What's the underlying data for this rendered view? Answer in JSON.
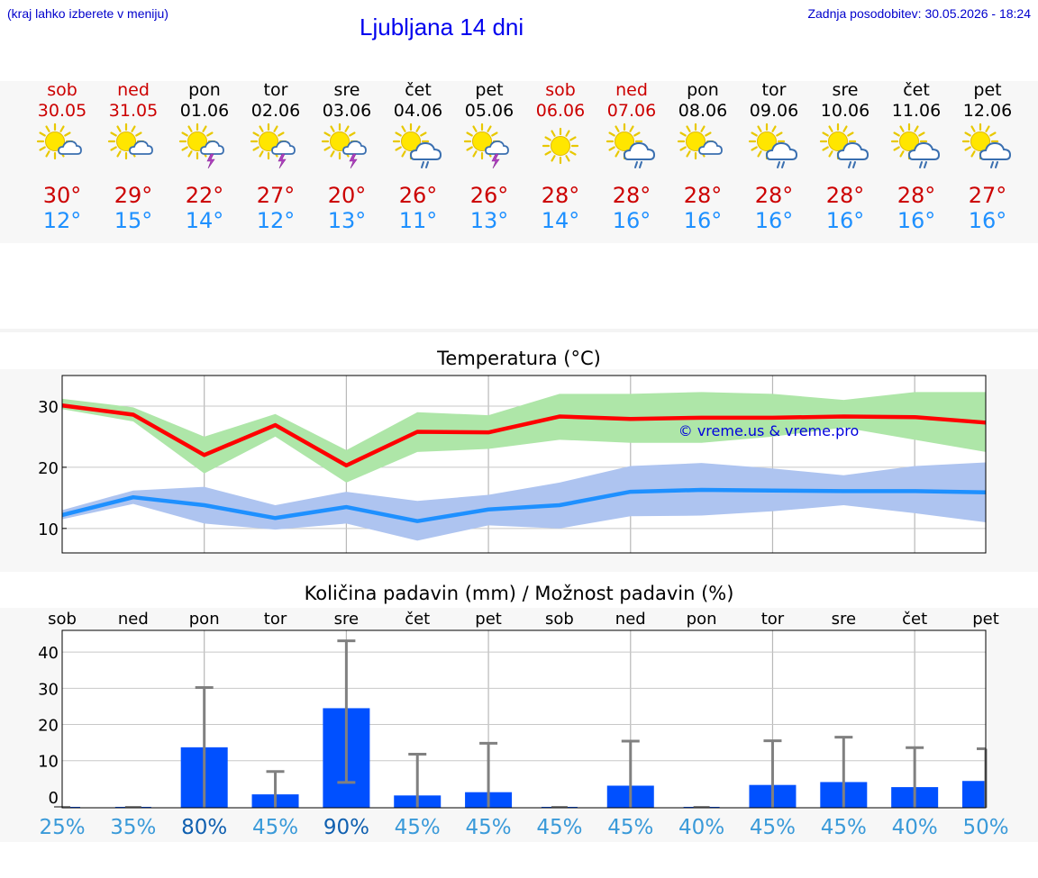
{
  "header": {
    "hint": "(kraj lahko izberete v meniju)",
    "title": "Ljubljana 14 dni",
    "updated": "Zadnja posodobitev: 30.05.2026 - 18:24"
  },
  "colors": {
    "weekend": "#cc0000",
    "weekday": "#000000",
    "tmax": "#ff0000",
    "tmin": "#1e90ff",
    "tmax_band": "#aee6a8",
    "tmin_band": "#aec4f0",
    "bar": "#0050ff",
    "errorbar": "#808080"
  },
  "days": [
    {
      "name": "sob",
      "date": "30.05",
      "weekend": true,
      "icon": "sun-cloud",
      "tmax": "30°",
      "tmin": "12°"
    },
    {
      "name": "ned",
      "date": "31.05",
      "weekend": true,
      "icon": "sun-cloud",
      "tmax": "29°",
      "tmin": "15°"
    },
    {
      "name": "pon",
      "date": "01.06",
      "weekend": false,
      "icon": "sun-cloud-storm",
      "tmax": "22°",
      "tmin": "14°"
    },
    {
      "name": "tor",
      "date": "02.06",
      "weekend": false,
      "icon": "sun-cloud-storm",
      "tmax": "27°",
      "tmin": "12°"
    },
    {
      "name": "sre",
      "date": "03.06",
      "weekend": false,
      "icon": "sun-cloud-storm",
      "tmax": "20°",
      "tmin": "13°"
    },
    {
      "name": "čet",
      "date": "04.06",
      "weekend": false,
      "icon": "sun-cloud-rain",
      "tmax": "26°",
      "tmin": "11°"
    },
    {
      "name": "pet",
      "date": "05.06",
      "weekend": false,
      "icon": "sun-cloud-storm",
      "tmax": "26°",
      "tmin": "13°"
    },
    {
      "name": "sob",
      "date": "06.06",
      "weekend": true,
      "icon": "sun",
      "tmax": "28°",
      "tmin": "14°"
    },
    {
      "name": "ned",
      "date": "07.06",
      "weekend": true,
      "icon": "sun-cloud-rain",
      "tmax": "28°",
      "tmin": "16°"
    },
    {
      "name": "pon",
      "date": "08.06",
      "weekend": false,
      "icon": "sun-cloud",
      "tmax": "28°",
      "tmin": "16°"
    },
    {
      "name": "tor",
      "date": "09.06",
      "weekend": false,
      "icon": "sun-cloud-rain",
      "tmax": "28°",
      "tmin": "16°"
    },
    {
      "name": "sre",
      "date": "10.06",
      "weekend": false,
      "icon": "sun-cloud-rain",
      "tmax": "28°",
      "tmin": "16°"
    },
    {
      "name": "čet",
      "date": "11.06",
      "weekend": false,
      "icon": "sun-cloud-rain",
      "tmax": "28°",
      "tmin": "16°"
    },
    {
      "name": "pet",
      "date": "12.06",
      "weekend": false,
      "icon": "sun-cloud-rain",
      "tmax": "27°",
      "tmin": "16°"
    }
  ],
  "chart_data": [
    {
      "type": "line",
      "title": "Temperatura (°C)",
      "ylim": [
        6,
        35
      ],
      "yticks": [
        10,
        20,
        30
      ],
      "grid": true,
      "watermark": "© vreme.us & vreme.pro",
      "x_index": [
        0,
        1,
        2,
        3,
        4,
        5,
        6,
        7,
        8,
        9,
        10,
        11,
        12,
        13
      ],
      "series": [
        {
          "role": "tmax",
          "values": [
            30.1,
            28.6,
            22.0,
            26.9,
            20.3,
            25.8,
            25.7,
            28.3,
            27.9,
            28.1,
            28.1,
            28.3,
            28.2,
            27.3
          ]
        },
        {
          "role": "tmin",
          "values": [
            12.2,
            15.1,
            13.8,
            11.7,
            13.5,
            11.2,
            13.1,
            13.8,
            16.0,
            16.3,
            16.2,
            16.1,
            16.1,
            15.9
          ]
        }
      ],
      "bands": [
        {
          "role": "tmax_band",
          "low": [
            29.5,
            27.5,
            19.0,
            25.0,
            17.5,
            22.5,
            23.0,
            24.5,
            24.0,
            24.0,
            25.0,
            26.5,
            24.5,
            22.5
          ],
          "high": [
            31.2,
            29.8,
            25.0,
            28.7,
            22.8,
            29.0,
            28.5,
            32.0,
            32.0,
            32.3,
            32.0,
            31.0,
            32.3,
            32.3
          ]
        },
        {
          "role": "tmin_band",
          "low": [
            11.5,
            14.0,
            10.8,
            9.8,
            10.8,
            8.0,
            10.5,
            10.0,
            12.0,
            12.1,
            12.8,
            13.8,
            12.5,
            11.0
          ],
          "high": [
            13.0,
            16.2,
            16.8,
            13.8,
            16.0,
            14.5,
            15.5,
            17.5,
            20.2,
            20.7,
            19.8,
            18.7,
            20.2,
            20.8
          ]
        }
      ]
    },
    {
      "type": "bar",
      "title": "Količina padavin (mm) / Možnost padavin (%)",
      "categories": [
        "sob",
        "ned",
        "pon",
        "tor",
        "sre",
        "čet",
        "pet",
        "sob",
        "ned",
        "pon",
        "tor",
        "sre",
        "čet",
        "pet"
      ],
      "values": [
        0,
        0,
        13.7,
        0.7,
        24.5,
        0.4,
        1.3,
        0,
        3.1,
        0,
        3.3,
        4.1,
        2.7,
        4.4
      ],
      "err_low": [
        0,
        0,
        0,
        0,
        4.0,
        0,
        0,
        0,
        0,
        0,
        0,
        0,
        0,
        0
      ],
      "err_high": [
        0,
        0.1,
        30.2,
        7.0,
        43.1,
        11.8,
        14.8,
        0.1,
        15.4,
        0.1,
        15.5,
        16.5,
        13.6,
        13.3
      ],
      "chances": [
        "25%",
        "35%",
        "80%",
        "45%",
        "90%",
        "45%",
        "45%",
        "45%",
        "45%",
        "40%",
        "45%",
        "45%",
        "40%",
        "50%"
      ],
      "chance_emphasis": [
        false,
        false,
        true,
        false,
        true,
        false,
        false,
        false,
        false,
        false,
        false,
        false,
        false,
        false
      ],
      "ylim": [
        -3,
        46
      ],
      "yticks": [
        0,
        10,
        20,
        30,
        40
      ],
      "ytick_labels": [
        "0",
        "10",
        "20",
        "30",
        "40"
      ],
      "grid": true
    }
  ]
}
